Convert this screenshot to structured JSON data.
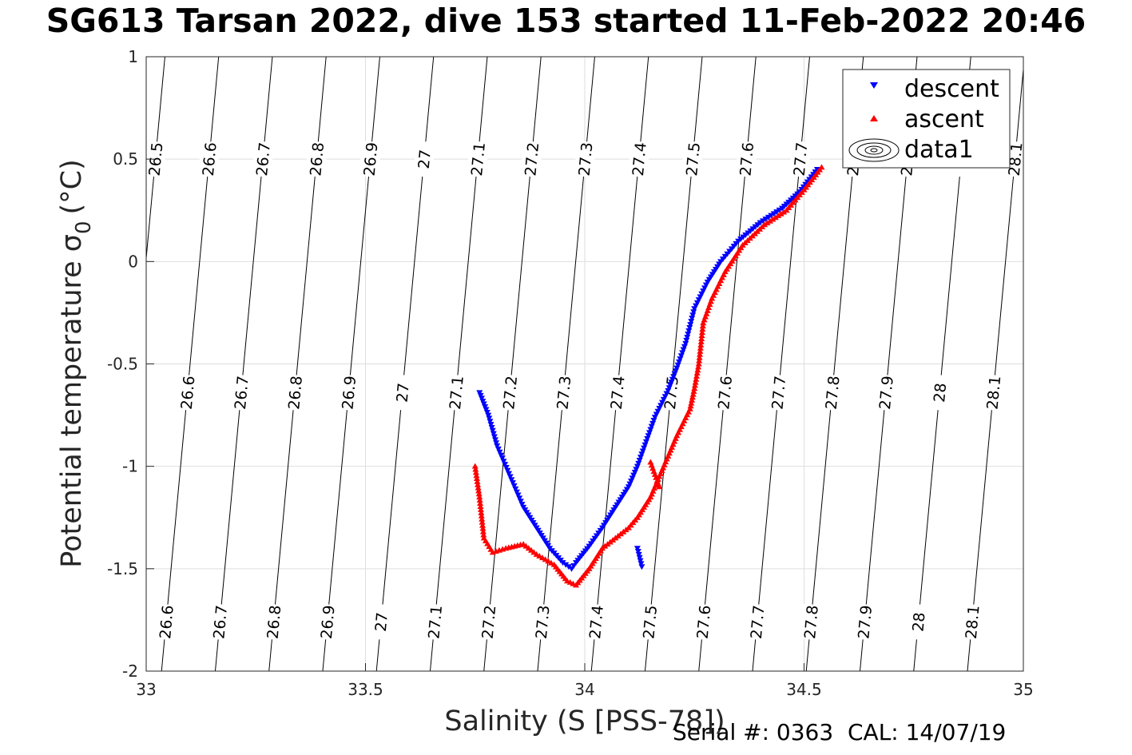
{
  "chart_data": {
    "type": "scatter",
    "title": "SG613 Tarsan 2022, dive 153 started 11-Feb-2022 20:46",
    "xlabel": "Salinity (S [PSS-78])",
    "ylabel": "Potential temperature σ",
    "ylabel_subscript": "0",
    "ylabel_unit": "(°C)",
    "xlim": [
      33,
      35
    ],
    "ylim": [
      -2,
      1
    ],
    "xticks": [
      "33",
      "33.5",
      "34",
      "34.5",
      "35"
    ],
    "yticks": [
      "-2",
      "-1.5",
      "-1",
      "-0.5",
      "0",
      "0.5",
      "1"
    ],
    "grid": true,
    "legend_position": "top-right",
    "legend": [
      {
        "name": "descent",
        "color": "#0000ff",
        "marker": "triangle-down"
      },
      {
        "name": "ascent",
        "color": "#ff0000",
        "marker": "triangle-up"
      },
      {
        "name": "data1",
        "color": "#000000",
        "marker": "contour"
      }
    ],
    "isopycnals": [
      "26.5",
      "26.6",
      "26.7",
      "26.8",
      "26.9",
      "27",
      "27.1",
      "27.2",
      "27.3",
      "27.4",
      "27.5",
      "27.6",
      "27.7",
      "27.8",
      "27.9",
      "28",
      "28.1"
    ],
    "series": [
      {
        "name": "descent",
        "color": "#0000ff",
        "x": [
          34.53,
          34.49,
          34.45,
          34.4,
          34.35,
          34.31,
          34.28,
          34.25,
          34.23,
          34.21,
          34.19,
          34.16,
          34.14,
          34.12,
          34.1,
          34.07,
          34.04,
          34.01,
          33.98,
          33.97,
          33.95,
          33.92,
          33.89,
          33.86,
          33.83,
          33.8,
          33.78,
          33.76,
          34.12,
          34.13
        ],
        "y": [
          0.45,
          0.34,
          0.26,
          0.19,
          0.1,
          0.0,
          -0.1,
          -0.23,
          -0.4,
          -0.52,
          -0.63,
          -0.76,
          -0.88,
          -1.0,
          -1.1,
          -1.2,
          -1.3,
          -1.39,
          -1.47,
          -1.5,
          -1.47,
          -1.4,
          -1.3,
          -1.2,
          -1.05,
          -0.9,
          -0.75,
          -0.64,
          -1.4,
          -1.49
        ]
      },
      {
        "name": "ascent",
        "color": "#ff0000",
        "x": [
          34.54,
          34.5,
          34.46,
          34.41,
          34.36,
          34.32,
          34.29,
          34.27,
          34.26,
          34.25,
          34.24,
          34.21,
          34.19,
          34.17,
          34.15,
          34.12,
          34.1,
          34.07,
          34.04,
          34.01,
          33.98,
          33.96,
          33.93,
          33.89,
          33.86,
          33.82,
          33.79,
          33.77,
          33.76,
          33.75,
          34.15,
          34.17
        ],
        "y": [
          0.46,
          0.35,
          0.25,
          0.18,
          0.08,
          -0.05,
          -0.18,
          -0.3,
          -0.5,
          -0.62,
          -0.72,
          -0.85,
          -0.95,
          -1.05,
          -1.15,
          -1.25,
          -1.3,
          -1.35,
          -1.4,
          -1.5,
          -1.58,
          -1.56,
          -1.48,
          -1.43,
          -1.38,
          -1.4,
          -1.42,
          -1.35,
          -1.15,
          -1.0,
          -0.98,
          -1.1
        ]
      }
    ]
  },
  "footer": "Serial #: 0363  CAL: 14/07/19"
}
